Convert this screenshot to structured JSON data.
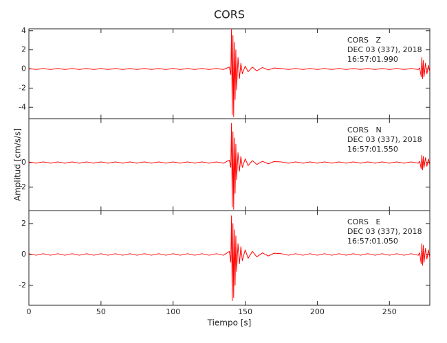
{
  "chart_data": [
    {
      "type": "line",
      "title": "CORS",
      "annotation": [
        "CORS   Z",
        "DEC 03 (337), 2018",
        "16:57:01.990"
      ],
      "xlim": [
        0,
        278
      ],
      "ylim": [
        -5.2,
        4.2
      ],
      "yticks": [
        4,
        2,
        0,
        -2,
        -4
      ],
      "x": [
        0,
        5,
        10,
        15,
        20,
        25,
        30,
        35,
        40,
        45,
        50,
        55,
        60,
        65,
        70,
        75,
        80,
        85,
        90,
        95,
        100,
        105,
        110,
        115,
        120,
        125,
        130,
        135,
        139,
        140,
        140.5,
        141,
        141.5,
        142,
        142.5,
        143,
        143.5,
        144,
        145,
        146,
        147,
        148,
        150,
        152,
        155,
        158,
        162,
        166,
        170,
        175,
        180,
        185,
        190,
        195,
        200,
        205,
        210,
        215,
        220,
        225,
        230,
        235,
        240,
        245,
        250,
        255,
        260,
        265,
        270,
        271,
        272,
        272.5,
        273,
        273.5,
        274,
        275,
        276,
        277,
        278
      ],
      "series": [
        {
          "name": "Z",
          "color": "#ff0000",
          "values": [
            0.05,
            -0.05,
            0.05,
            -0.05,
            0.05,
            -0.05,
            0.05,
            -0.05,
            0.05,
            -0.05,
            0.05,
            -0.05,
            0.05,
            -0.05,
            0.05,
            -0.05,
            0.05,
            -0.05,
            0.05,
            -0.05,
            0.05,
            -0.05,
            0.05,
            -0.05,
            0.05,
            -0.05,
            0.05,
            -0.05,
            0.2,
            -0.6,
            4.2,
            -4.8,
            3.5,
            -5.0,
            2.8,
            -3.2,
            2.0,
            -2.2,
            1.2,
            -1.0,
            0.6,
            -0.5,
            0.3,
            -0.3,
            0.2,
            -0.2,
            0.15,
            -0.1,
            0.1,
            0.05,
            -0.05,
            0.05,
            -0.05,
            0.05,
            -0.05,
            0.05,
            -0.05,
            0.05,
            -0.05,
            0.05,
            -0.05,
            0.05,
            -0.05,
            0.05,
            -0.05,
            0.05,
            -0.05,
            0.05,
            -0.05,
            0.1,
            -0.8,
            1.2,
            -1.0,
            0.9,
            -0.8,
            0.6,
            -0.5,
            0.4,
            -0.3
          ]
        }
      ]
    },
    {
      "type": "line",
      "ylabel": "Amplitud [cm/s/s]",
      "annotation": [
        "CORS   N",
        "DEC 03 (337), 2018",
        "16:57:01.550"
      ],
      "xlim": [
        0,
        278
      ],
      "ylim": [
        -3.9,
        3.56
      ],
      "yticks": [
        0,
        {
          "value": -2,
          "label": "2"
        }
      ],
      "x": [
        0,
        5,
        10,
        15,
        20,
        25,
        30,
        35,
        40,
        45,
        50,
        55,
        60,
        65,
        70,
        75,
        80,
        85,
        90,
        95,
        100,
        105,
        110,
        115,
        120,
        125,
        130,
        135,
        139,
        140,
        140.5,
        141,
        141.5,
        142,
        142.5,
        143,
        143.5,
        144,
        145,
        146,
        147,
        148,
        150,
        152,
        155,
        158,
        162,
        166,
        170,
        175,
        180,
        185,
        190,
        195,
        200,
        205,
        210,
        215,
        220,
        225,
        230,
        235,
        240,
        245,
        250,
        255,
        260,
        265,
        270,
        271,
        272,
        272.5,
        273,
        273.5,
        274,
        275,
        276,
        277,
        278
      ],
      "series": [
        {
          "name": "N",
          "color": "#ff0000",
          "values": [
            0.05,
            -0.05,
            0.05,
            -0.05,
            0.05,
            -0.05,
            0.05,
            -0.05,
            0.05,
            -0.05,
            0.05,
            -0.05,
            0.05,
            -0.05,
            0.05,
            -0.05,
            0.05,
            -0.05,
            0.05,
            -0.05,
            0.05,
            -0.05,
            0.05,
            -0.05,
            0.05,
            -0.05,
            0.05,
            -0.05,
            0.2,
            -0.4,
            3.2,
            -3.6,
            2.5,
            -3.8,
            2.0,
            -2.5,
            1.5,
            -1.4,
            0.8,
            -0.7,
            0.5,
            -0.4,
            0.3,
            -0.25,
            0.15,
            -0.15,
            0.1,
            -0.1,
            0.08,
            0.05,
            -0.05,
            0.05,
            -0.05,
            0.05,
            -0.05,
            0.05,
            -0.05,
            0.05,
            -0.05,
            0.05,
            -0.05,
            0.05,
            -0.05,
            0.05,
            -0.05,
            0.05,
            -0.05,
            0.05,
            -0.05,
            0.1,
            -0.5,
            0.6,
            -0.6,
            0.5,
            -0.4,
            0.4,
            -0.3,
            0.3,
            -0.2
          ]
        }
      ]
    },
    {
      "type": "line",
      "xlabel": "Tiempo [s]",
      "annotation": [
        "CORS   E",
        "DEC 03 (337), 2018",
        "16:57:01.050"
      ],
      "xlim": [
        0,
        278
      ],
      "xticks": [
        0,
        50,
        100,
        150,
        200,
        250
      ],
      "ylim": [
        -3.29,
        2.84
      ],
      "yticks": [
        2,
        0,
        -2
      ],
      "x": [
        0,
        5,
        10,
        15,
        20,
        25,
        30,
        35,
        40,
        45,
        50,
        55,
        60,
        65,
        70,
        75,
        80,
        85,
        90,
        95,
        100,
        105,
        110,
        115,
        120,
        125,
        130,
        135,
        139,
        140,
        140.5,
        141,
        141.5,
        142,
        142.5,
        143,
        143.5,
        144,
        145,
        146,
        147,
        148,
        150,
        152,
        155,
        158,
        162,
        166,
        170,
        175,
        180,
        185,
        190,
        195,
        200,
        205,
        210,
        215,
        220,
        225,
        230,
        235,
        240,
        245,
        250,
        255,
        260,
        265,
        270,
        271,
        272,
        272.5,
        273,
        273.5,
        274,
        275,
        276,
        277,
        278
      ],
      "series": [
        {
          "name": "E",
          "color": "#ff0000",
          "values": [
            0.05,
            -0.05,
            0.05,
            -0.05,
            0.05,
            -0.05,
            0.05,
            -0.05,
            0.05,
            -0.05,
            0.05,
            -0.05,
            0.05,
            -0.05,
            0.05,
            -0.05,
            0.05,
            -0.05,
            0.05,
            -0.05,
            0.05,
            -0.05,
            0.05,
            -0.05,
            0.05,
            -0.05,
            0.05,
            -0.05,
            0.2,
            -0.5,
            2.5,
            -3.0,
            2.0,
            -2.8,
            1.6,
            -2.0,
            1.2,
            -1.1,
            0.7,
            -0.6,
            0.5,
            -0.4,
            0.3,
            -0.25,
            0.2,
            -0.15,
            0.1,
            -0.1,
            0.08,
            0.05,
            -0.05,
            0.05,
            -0.05,
            0.05,
            -0.05,
            0.05,
            -0.05,
            0.05,
            -0.05,
            0.05,
            -0.05,
            0.05,
            -0.05,
            0.05,
            -0.05,
            0.05,
            -0.05,
            0.05,
            -0.05,
            0.1,
            -0.6,
            0.7,
            -0.7,
            0.6,
            -0.5,
            0.4,
            -0.3,
            0.3,
            -0.2
          ]
        }
      ]
    }
  ]
}
